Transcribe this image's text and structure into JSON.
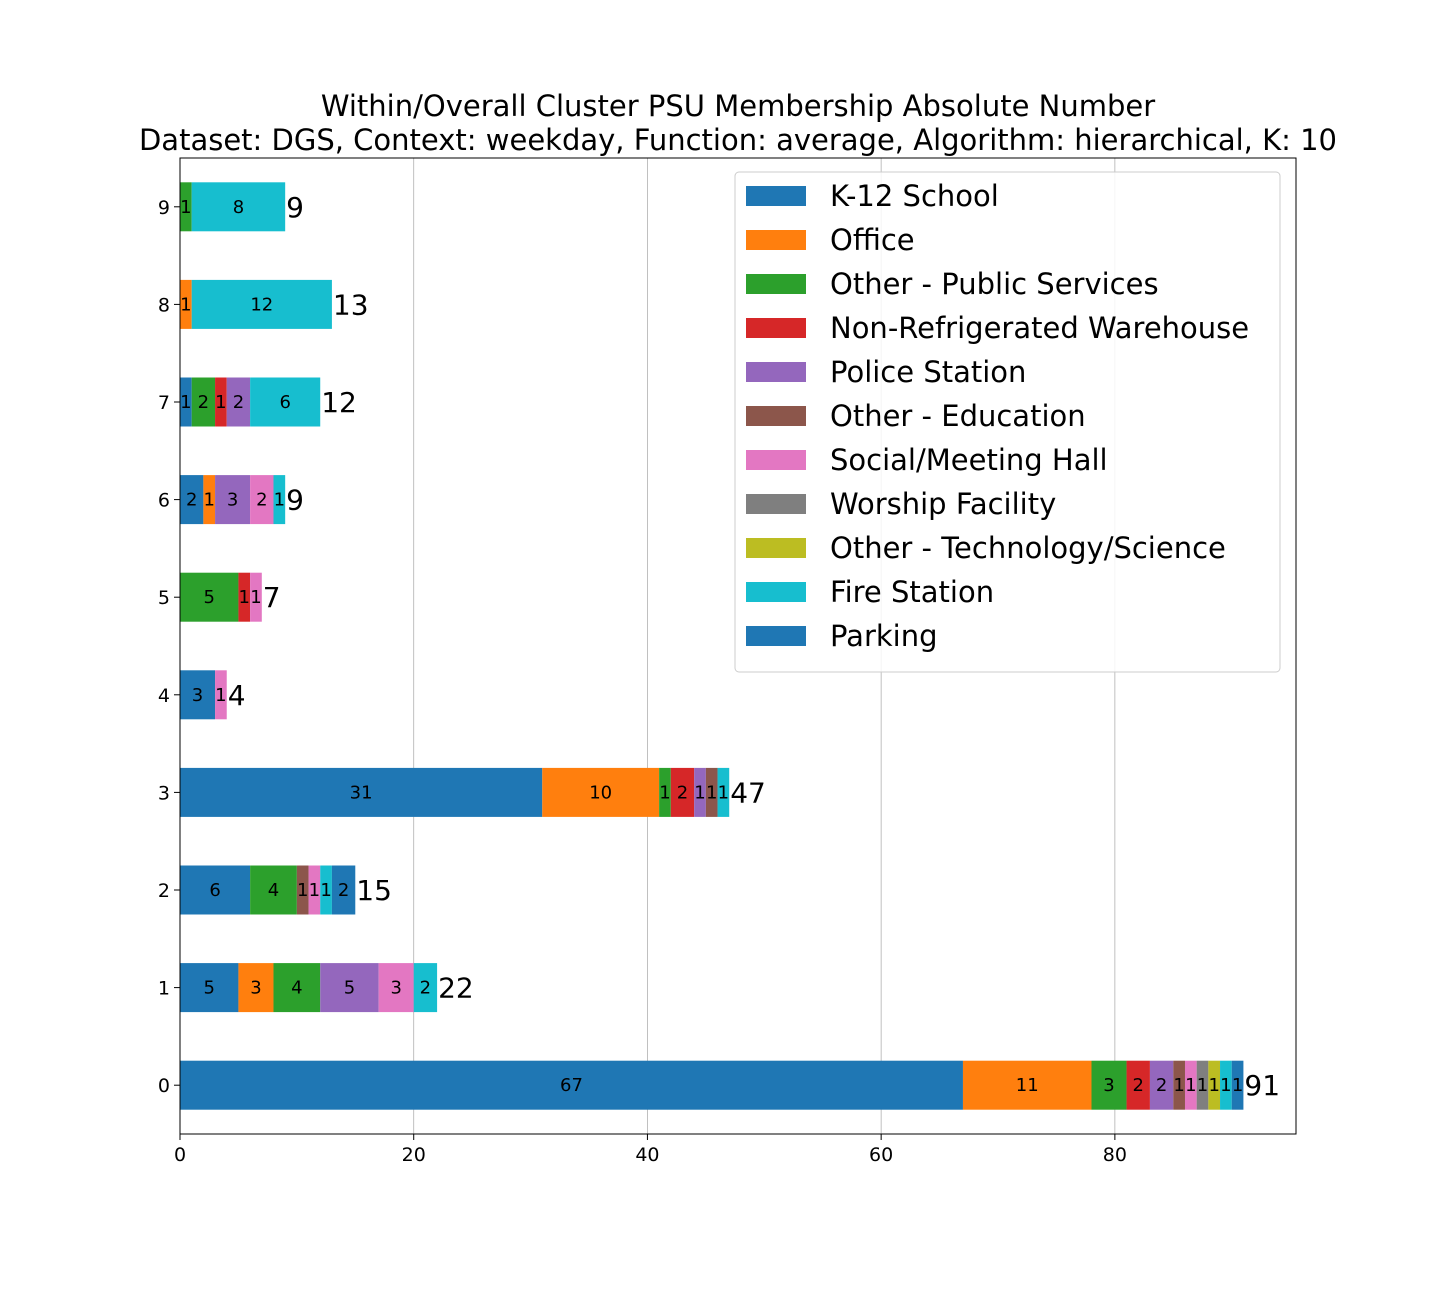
{
  "chart_data": {
    "type": "bar",
    "orientation": "horizontal",
    "stacked": true,
    "title": "Within/Overall Cluster PSU Membership Absolute Number",
    "subtitle": "Dataset: DGS, Context: weekday, Function: average, Algorithm: hierarchical, K: 10",
    "xlabel": "",
    "ylabel": "",
    "xlim": [
      0,
      95.5
    ],
    "xticks": [
      0,
      20,
      40,
      60,
      80
    ],
    "grid": "x",
    "legend_position": "top-right",
    "categories": [
      "0",
      "1",
      "2",
      "3",
      "4",
      "5",
      "6",
      "7",
      "8",
      "9"
    ],
    "series": [
      {
        "name": "K-12 School",
        "color": "#1f77b4",
        "values": [
          67,
          5,
          6,
          31,
          3,
          0,
          2,
          1,
          0,
          0
        ]
      },
      {
        "name": "Office",
        "color": "#ff7f0e",
        "values": [
          11,
          3,
          0,
          10,
          0,
          0,
          1,
          0,
          1,
          0
        ]
      },
      {
        "name": "Other - Public Services",
        "color": "#2ca02c",
        "values": [
          3,
          4,
          4,
          1,
          0,
          5,
          0,
          2,
          0,
          1
        ]
      },
      {
        "name": "Non-Refrigerated Warehouse",
        "color": "#d62728",
        "values": [
          2,
          0,
          0,
          2,
          0,
          1,
          0,
          1,
          0,
          0
        ]
      },
      {
        "name": "Police Station",
        "color": "#9467bd",
        "values": [
          2,
          5,
          0,
          1,
          0,
          0,
          3,
          2,
          0,
          0
        ]
      },
      {
        "name": "Other - Education",
        "color": "#8c564b",
        "values": [
          1,
          0,
          1,
          1,
          0,
          0,
          0,
          0,
          0,
          0
        ]
      },
      {
        "name": "Social/Meeting Hall",
        "color": "#e377c2",
        "values": [
          1,
          3,
          1,
          0,
          1,
          1,
          2,
          0,
          0,
          0
        ]
      },
      {
        "name": "Worship Facility",
        "color": "#7f7f7f",
        "values": [
          1,
          0,
          0,
          0,
          0,
          0,
          0,
          0,
          0,
          0
        ]
      },
      {
        "name": "Other - Technology/Science",
        "color": "#bcbd22",
        "values": [
          1,
          0,
          0,
          0,
          0,
          0,
          0,
          0,
          0,
          0
        ]
      },
      {
        "name": "Fire Station",
        "color": "#17becf",
        "values": [
          1,
          2,
          1,
          1,
          0,
          0,
          1,
          6,
          12,
          8
        ]
      },
      {
        "name": "Parking",
        "color": "#1f77b4",
        "values": [
          1,
          0,
          2,
          0,
          0,
          0,
          0,
          0,
          0,
          0
        ]
      }
    ],
    "totals": [
      91,
      22,
      15,
      47,
      4,
      7,
      9,
      12,
      13,
      9
    ]
  }
}
